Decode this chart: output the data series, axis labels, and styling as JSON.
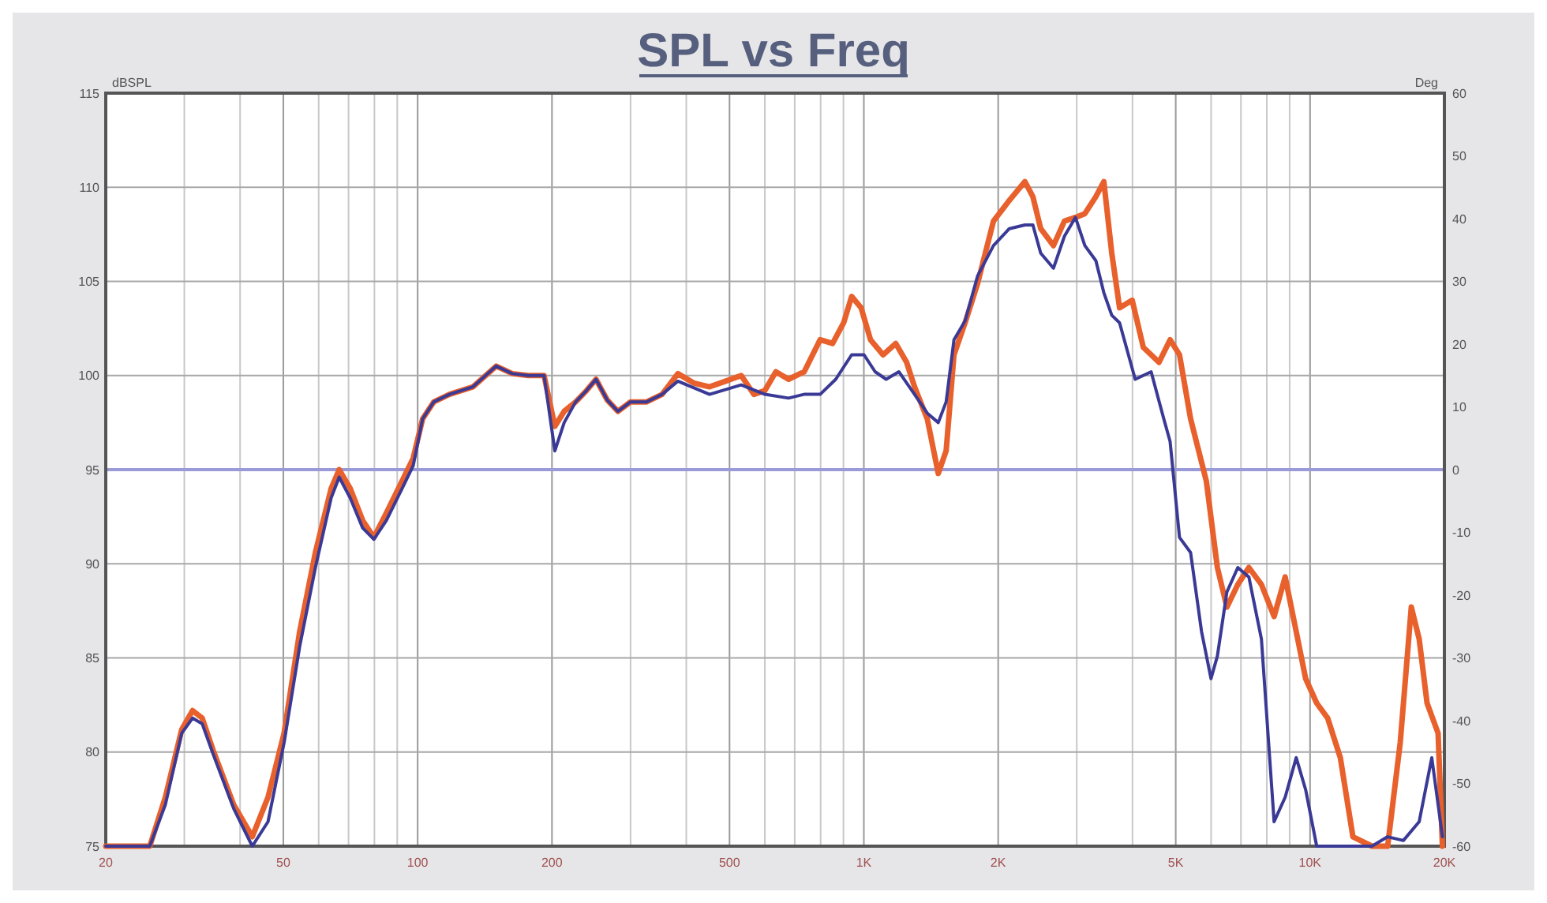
{
  "chart_data": {
    "type": "line",
    "title": "SPL vs Freq",
    "ylabel": "dBSPL",
    "y2label": "Deg",
    "log": "x",
    "grid": true,
    "line_style": "solid",
    "xlim": [
      20,
      20000
    ],
    "xticks": [
      20,
      {
        "value": 30,
        "label": null
      },
      {
        "value": 40,
        "label": null
      },
      50,
      {
        "value": 60,
        "label": null
      },
      {
        "value": 70,
        "label": null
      },
      {
        "value": 80,
        "label": null
      },
      {
        "value": 90,
        "label": null
      },
      100,
      200,
      {
        "value": 300,
        "label": null
      },
      {
        "value": 400,
        "label": null
      },
      500,
      {
        "value": 600,
        "label": null
      },
      {
        "value": 700,
        "label": null
      },
      {
        "value": 800,
        "label": null
      },
      {
        "value": 900,
        "label": null
      },
      {
        "value": 1000,
        "label": "1K"
      },
      {
        "value": 2000,
        "label": "2K"
      },
      {
        "value": 3000,
        "label": null
      },
      {
        "value": 4000,
        "label": null
      },
      {
        "value": 5000,
        "label": "5K"
      },
      {
        "value": 6000,
        "label": null
      },
      {
        "value": 7000,
        "label": null
      },
      {
        "value": 8000,
        "label": null
      },
      {
        "value": 9000,
        "label": null
      },
      {
        "value": 10000,
        "label": "10K"
      },
      {
        "value": 20000,
        "label": "20K"
      }
    ],
    "ylim": [
      75,
      115
    ],
    "yticks": [
      75,
      80,
      85,
      90,
      95,
      100,
      105,
      110,
      115
    ],
    "y2lim": [
      -60,
      60
    ],
    "y2ticks": [
      -60,
      -50,
      -40,
      -30,
      -20,
      -10,
      0,
      10,
      20,
      30,
      40,
      50,
      60
    ],
    "ref_lines": [
      {
        "axis": "y2",
        "value": 0,
        "label": null,
        "color": "#9a9ad8"
      }
    ],
    "series": [
      {
        "color": "#e8602c",
        "x": [
          20,
          25.1,
          27.2,
          29.6,
          31.3,
          32.9,
          34.8,
          38.7,
          42.6,
          46.2,
          50.2,
          54.4,
          59.0,
          64.0,
          66.7,
          70.6,
          75.3,
          79.8,
          85.1,
          92.3,
          97.7,
          102.6,
          108.7,
          117.8,
          133,
          150,
          163,
          177,
          192,
          203,
          213,
          226,
          239,
          251,
          266,
          281,
          300,
          326,
          353,
          383,
          416,
          451,
          490,
          531,
          567,
          600,
          635,
          678,
          735,
          798,
          851,
          901,
          939,
          986,
          1035,
          1104,
          1179,
          1247,
          1299,
          1387,
          1468,
          1529,
          1592,
          1686,
          1799,
          1952,
          2118,
          2296,
          2392,
          2491,
          2660,
          2815,
          2980,
          3128,
          3311,
          3450,
          3594,
          3742,
          3994,
          4229,
          4586,
          4856,
          5098,
          5398,
          5854,
          6198,
          6510,
          6888,
          7292,
          7780,
          8306,
          8794,
          9310,
          9774,
          10348,
          10952,
          11690,
          12474,
          13760,
          14924,
          15924,
          16860,
          17560,
          18288,
          19360,
          19800
        ],
        "values": [
          75.0,
          75.0,
          77.6,
          81.2,
          82.2,
          81.8,
          80.1,
          77.2,
          75.5,
          77.6,
          81.0,
          86.4,
          90.6,
          94.0,
          95.0,
          94.0,
          92.3,
          91.4,
          92.7,
          94.4,
          95.6,
          97.7,
          98.6,
          99.0,
          99.4,
          100.5,
          100.1,
          100.0,
          100.0,
          97.3,
          98.1,
          98.6,
          99.2,
          99.8,
          98.7,
          98.1,
          98.6,
          98.6,
          99.0,
          100.1,
          99.6,
          99.4,
          99.7,
          100.0,
          99.0,
          99.2,
          100.2,
          99.8,
          100.2,
          101.9,
          101.7,
          102.8,
          104.2,
          103.6,
          101.9,
          101.1,
          101.7,
          100.7,
          99.4,
          97.7,
          94.8,
          96.0,
          101.1,
          102.8,
          104.9,
          108.2,
          109.3,
          110.3,
          109.5,
          107.8,
          106.9,
          108.2,
          108.4,
          108.6,
          109.5,
          110.3,
          106.5,
          103.6,
          104.0,
          101.5,
          100.7,
          101.9,
          101.1,
          97.7,
          94.4,
          89.8,
          87.7,
          88.9,
          89.8,
          88.9,
          87.2,
          89.3,
          86.4,
          83.9,
          82.6,
          81.8,
          79.7,
          75.5,
          75.0,
          75.0,
          80.5,
          87.7,
          86.0,
          82.6,
          81.0,
          75.0
        ]
      },
      {
        "color": "#3a3a96",
        "x": [
          20,
          25.1,
          27.2,
          29.6,
          31.3,
          32.9,
          34.8,
          38.7,
          42.6,
          46.2,
          50.2,
          54.4,
          59.0,
          64.0,
          66.7,
          70.6,
          75.3,
          79.8,
          85.1,
          92.3,
          97.7,
          102.6,
          108.7,
          117.8,
          133,
          150,
          163,
          177,
          192,
          203,
          213,
          226,
          239,
          251,
          266,
          281,
          300,
          326,
          353,
          383,
          451,
          531,
          600,
          678,
          735,
          798,
          865,
          939,
          1001,
          1060,
          1122,
          1198,
          1299,
          1387,
          1468,
          1529,
          1592,
          1686,
          1799,
          1952,
          2118,
          2296,
          2392,
          2491,
          2660,
          2815,
          2980,
          3128,
          3311,
          3450,
          3594,
          3742,
          4056,
          4404,
          4700,
          4856,
          5098,
          5398,
          5712,
          5998,
          6198,
          6510,
          6888,
          7292,
          7780,
          8306,
          8794,
          9310,
          9774,
          10348,
          13760,
          14924,
          16180,
          17560,
          18740,
          19800
        ],
        "values": [
          75.0,
          75.0,
          77.2,
          81.0,
          81.8,
          81.5,
          79.9,
          77.0,
          75.0,
          76.3,
          80.5,
          85.6,
          89.8,
          93.5,
          94.6,
          93.5,
          91.9,
          91.3,
          92.3,
          94.0,
          95.2,
          97.7,
          98.6,
          99.0,
          99.4,
          100.5,
          100.1,
          100.0,
          100.0,
          96.0,
          97.5,
          98.6,
          99.2,
          99.8,
          98.7,
          98.1,
          98.6,
          98.6,
          99.0,
          99.7,
          99.0,
          99.5,
          99.0,
          98.8,
          99.0,
          99.0,
          99.8,
          101.1,
          101.1,
          100.2,
          99.8,
          100.2,
          99.0,
          98.0,
          97.5,
          98.6,
          101.9,
          102.9,
          105.3,
          106.9,
          107.8,
          108.0,
          108.0,
          106.5,
          105.7,
          107.4,
          108.4,
          106.9,
          106.1,
          104.4,
          103.2,
          102.8,
          99.8,
          100.2,
          97.7,
          96.5,
          91.4,
          90.6,
          86.4,
          83.9,
          85.1,
          88.5,
          89.8,
          89.3,
          86.0,
          76.3,
          77.6,
          79.7,
          78.0,
          75.0,
          75.0,
          75.5,
          75.3,
          76.3,
          79.7,
          75.5
        ]
      }
    ]
  }
}
